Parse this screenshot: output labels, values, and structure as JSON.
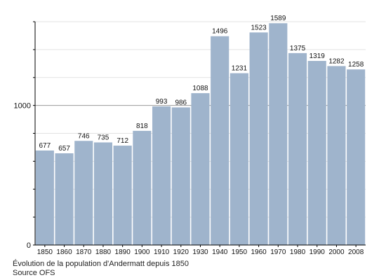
{
  "chart_data": {
    "type": "bar",
    "categories": [
      "1850",
      "1860",
      "1870",
      "1880",
      "1890",
      "1900",
      "1910",
      "1920",
      "1930",
      "1940",
      "1950",
      "1960",
      "1970",
      "1980",
      "1990",
      "2000",
      "2008"
    ],
    "values": [
      677,
      657,
      746,
      735,
      712,
      818,
      993,
      986,
      1088,
      1496,
      1231,
      1523,
      1589,
      1375,
      1319,
      1282,
      1258
    ],
    "data_labels": [
      "677",
      "657",
      "746",
      "735",
      "712",
      "818",
      "993",
      "986",
      "1088",
      "1496",
      "1231",
      "1523",
      "1589",
      "1375",
      "1319",
      "1282",
      "1258"
    ],
    "ylim": [
      0,
      1600
    ],
    "y_ticks": [
      0,
      1000
    ],
    "y_tick_labels": [
      "0",
      "1000"
    ],
    "grid": true,
    "bar_color": "#9fb4cc",
    "caption": "Évolution de la population d'Andermatt depuis 1850",
    "source": "Source OFS"
  }
}
